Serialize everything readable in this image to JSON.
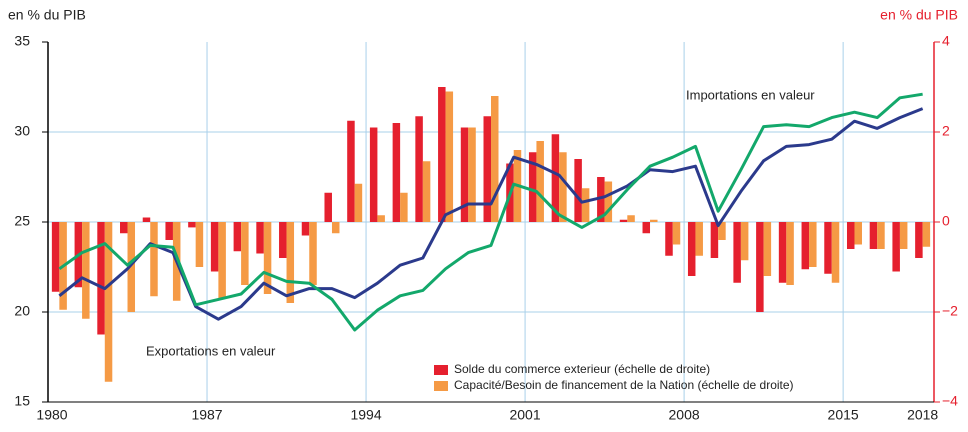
{
  "chart_data": {
    "type": "bar_line",
    "y_label": "en % du PIB",
    "y2_label": "en % du PIB",
    "categories": [
      "1980",
      null,
      null,
      null,
      null,
      null,
      null,
      "1987",
      null,
      null,
      null,
      null,
      null,
      null,
      "1994",
      null,
      null,
      null,
      null,
      null,
      null,
      "2001",
      null,
      null,
      null,
      null,
      null,
      null,
      "2008",
      null,
      null,
      null,
      null,
      null,
      null,
      "2015",
      null,
      null,
      "2018"
    ],
    "series": [
      {
        "name": "Solde du commerce exterieur (échelle de droite)",
        "color": "#e5202e",
        "kind": "bar",
        "axis": "y2",
        "values": [
          -1.55,
          -1.45,
          -2.5,
          -0.25,
          0.1,
          -0.4,
          -0.12,
          -1.1,
          -0.65,
          -0.7,
          -0.8,
          -0.3,
          0.65,
          2.25,
          2.1,
          2.2,
          2.35,
          3.0,
          2.1,
          2.35,
          1.3,
          1.55,
          1.95,
          1.4,
          1.0,
          0.05,
          -0.25,
          -0.75,
          -1.2,
          -0.8,
          -1.35,
          -2.0,
          -1.35,
          -1.05,
          -1.15,
          -0.6,
          -0.6,
          -1.1,
          -0.8
        ]
      },
      {
        "name": "Capacité/Besoin de financement de la Nation (échelle de droite)",
        "color": "#f59a45",
        "kind": "bar",
        "axis": "y2",
        "values": [
          -1.95,
          -2.15,
          -3.55,
          -2.0,
          -1.65,
          -1.75,
          -1.0,
          -1.7,
          -1.4,
          -1.6,
          -1.8,
          -1.4,
          -0.25,
          0.85,
          0.15,
          0.65,
          1.35,
          2.9,
          2.1,
          2.8,
          1.6,
          1.8,
          1.55,
          0.75,
          0.9,
          0.15,
          0.05,
          -0.5,
          -0.75,
          -0.4,
          -0.85,
          -1.2,
          -1.4,
          -1.0,
          -1.35,
          -0.5,
          -0.6,
          -0.6,
          -0.55
        ]
      },
      {
        "name": "Exportations en valeur",
        "color": "#2b3a8c",
        "kind": "line",
        "axis": "y",
        "values": [
          20.9,
          21.9,
          21.3,
          22.4,
          23.8,
          23.3,
          20.3,
          19.6,
          20.3,
          21.6,
          20.9,
          21.3,
          21.3,
          20.8,
          21.6,
          22.6,
          23.0,
          25.4,
          26.0,
          26.0,
          28.6,
          28.2,
          27.6,
          26.1,
          26.4,
          27.0,
          27.9,
          27.8,
          28.1,
          24.8,
          26.7,
          28.4,
          29.2,
          29.3,
          29.6,
          30.6,
          30.2,
          30.8,
          31.3
        ]
      },
      {
        "name": "Importations en valeur",
        "color": "#13a86b",
        "kind": "line",
        "axis": "y",
        "values": [
          22.4,
          23.3,
          23.8,
          22.6,
          23.7,
          23.6,
          20.4,
          20.7,
          21.0,
          22.2,
          21.7,
          21.6,
          20.7,
          19.0,
          20.1,
          20.9,
          21.2,
          22.4,
          23.3,
          23.7,
          27.1,
          26.7,
          25.4,
          24.7,
          25.4,
          26.8,
          28.1,
          28.6,
          29.2,
          25.6,
          27.9,
          30.3,
          30.4,
          30.3,
          30.8,
          31.1,
          30.8,
          31.9,
          32.1
        ]
      }
    ],
    "ylim": [
      15,
      35
    ],
    "yticks": [
      15,
      20,
      25,
      30,
      35
    ],
    "y2lim": [
      -4,
      4
    ],
    "y2ticks": [
      {
        "value": -4,
        "label": "−4"
      },
      {
        "value": -2,
        "label": "−2"
      },
      0,
      2,
      4
    ],
    "y2color": "#e5202e",
    "grid": true
  }
}
